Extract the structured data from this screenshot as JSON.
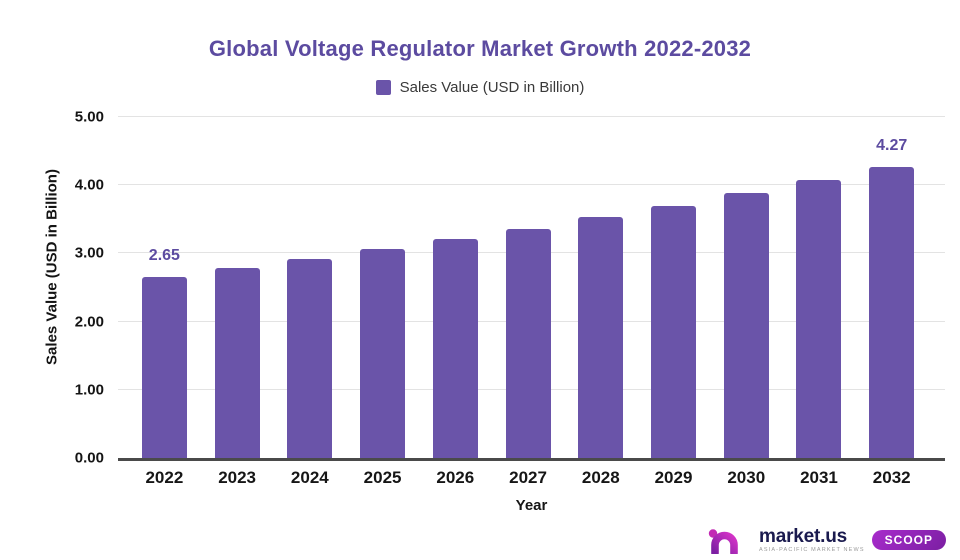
{
  "chart_data": {
    "type": "bar",
    "title": "Global Voltage Regulator Market Growth 2022-2032",
    "legend": "Sales Value (USD in Billion)",
    "xlabel": "Year",
    "ylabel": "Sales Value (USD in Billion)",
    "categories": [
      "2022",
      "2023",
      "2024",
      "2025",
      "2026",
      "2027",
      "2028",
      "2029",
      "2030",
      "2031",
      "2032"
    ],
    "values": [
      2.65,
      2.78,
      2.92,
      3.06,
      3.21,
      3.36,
      3.53,
      3.7,
      3.88,
      4.07,
      4.27
    ],
    "bar_labels": [
      "2.65",
      "",
      "",
      "",
      "",
      "",
      "",
      "",
      "",
      "",
      "4.27"
    ],
    "ylim": [
      0,
      5
    ],
    "ytick_labels": [
      "0.00",
      "1.00",
      "2.00",
      "3.00",
      "4.00",
      "5.00"
    ],
    "grid": true,
    "legend_position": "top",
    "bar_color": "#6A54A9",
    "title_color": "#5C4BA0",
    "label_color": "#5C4BA0"
  },
  "footer": {
    "brand": "market.us",
    "tagline": "ASIA-PACIFIC MARKET NEWS",
    "badge": "SCOOP"
  }
}
